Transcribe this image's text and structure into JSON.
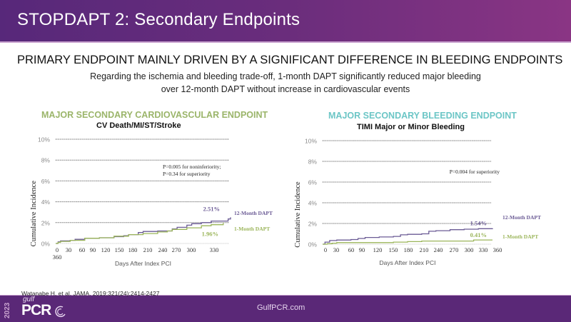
{
  "header": {
    "title": "STOPDAPT 2: Secondary Endpoints"
  },
  "main": {
    "heading": "PRIMARY ENDPOINT MAINLY DRIVEN BY A SIGNIFICANT DIFFERENCE IN BLEEDING ENDPOINTS",
    "summary_line1": "Regarding the ischemia and bleeding trade-off, 1-month DAPT significantly reduced major bleeding",
    "summary_line2": "over 12-month DAPT without increase in cardiovascular events"
  },
  "colors": {
    "twelve_month": "#6b5b95",
    "one_month": "#9bb55a",
    "cv_title": "#9bb56a",
    "bleed_title": "#6cc6c6",
    "header_start": "#57287a",
    "header_end": "#8a3584",
    "footer": "#5a2877"
  },
  "chart_data": [
    {
      "type": "line",
      "title": "MAJOR SECONDARY CARDIOVASCULAR ENDPOINT",
      "subtitle": "CV Death/MI/ST/Stroke",
      "xlabel": "Days After Index PCI",
      "ylabel": "Cumulative Incidence",
      "ylim": [
        0,
        10
      ],
      "xlim": [
        0,
        360
      ],
      "yticks": [
        "0%",
        "2%",
        "4%",
        "6%",
        "8%",
        "10%"
      ],
      "xtick_labels": [
        "0",
        "30",
        "60",
        "90",
        "120",
        "150",
        "180",
        "210",
        "240",
        "270",
        "300",
        "330",
        "360"
      ],
      "grid": true,
      "annotation": {
        "line1": "P=0.005 for noninferiority;",
        "line2": "P=0.34 for superiority"
      },
      "series": [
        {
          "name": "12-Month DAPT",
          "end_label": "2.51%",
          "x": [
            0,
            5,
            10,
            30,
            40,
            60,
            90,
            120,
            140,
            150,
            170,
            180,
            210,
            240,
            250,
            270,
            280,
            300,
            320,
            330,
            355,
            360
          ],
          "y": [
            0,
            0.15,
            0.25,
            0.3,
            0.4,
            0.5,
            0.55,
            0.65,
            0.75,
            0.85,
            1.05,
            1.15,
            1.2,
            1.4,
            1.55,
            1.75,
            1.9,
            2.0,
            2.15,
            2.15,
            2.35,
            2.51
          ]
        },
        {
          "name": "1-Month DAPT",
          "end_label": "1.96%",
          "x": [
            0,
            5,
            10,
            30,
            60,
            90,
            120,
            150,
            180,
            210,
            230,
            240,
            270,
            300,
            320,
            340,
            345
          ],
          "y": [
            0,
            0.1,
            0.2,
            0.3,
            0.5,
            0.55,
            0.7,
            0.85,
            0.95,
            1.1,
            1.2,
            1.35,
            1.5,
            1.7,
            1.8,
            1.8,
            1.96
          ]
        }
      ]
    },
    {
      "type": "line",
      "title": "MAJOR SECONDARY BLEEDING ENDPOINT",
      "subtitle": "TIMI Major or Minor Bleeding",
      "xlabel": "Days After Index PCI",
      "ylabel": "Cumulative Incidence",
      "ylim": [
        0,
        10
      ],
      "xlim": [
        0,
        360
      ],
      "yticks": [
        "0%",
        "2%",
        "4%",
        "6%",
        "8%",
        "10%"
      ],
      "xtick_labels": [
        "0",
        "30",
        "60",
        "90",
        "120",
        "150",
        "180",
        "210",
        "240",
        "270",
        "300",
        "330",
        "360"
      ],
      "grid": true,
      "annotation": {
        "line1": "P=0.004 for superiority"
      },
      "series": [
        {
          "name": "12-Month DAPT",
          "end_label": "1.54%",
          "x": [
            0,
            5,
            15,
            30,
            60,
            75,
            90,
            120,
            150,
            165,
            180,
            210,
            225,
            240,
            270,
            300,
            330,
            360
          ],
          "y": [
            0,
            0.2,
            0.35,
            0.4,
            0.45,
            0.55,
            0.65,
            0.7,
            0.75,
            0.9,
            0.95,
            1.0,
            1.25,
            1.3,
            1.4,
            1.45,
            1.5,
            1.54
          ]
        },
        {
          "name": "1-Month DAPT",
          "end_label": "0.41%",
          "x": [
            0,
            10,
            20,
            30,
            60,
            120,
            150,
            180,
            210,
            240,
            270,
            300,
            320,
            360
          ],
          "y": [
            0,
            0.05,
            0.1,
            0.15,
            0.15,
            0.15,
            0.2,
            0.25,
            0.3,
            0.3,
            0.3,
            0.3,
            0.41,
            0.41
          ]
        }
      ]
    }
  ],
  "footer": {
    "citation": "Watanabe H, et al. JAMA. 2019;321(24):2414-2427",
    "url": "GulfPCR.com",
    "logo_year": "2023",
    "logo_gulf": "gulf",
    "logo_pcr": "PCR"
  }
}
